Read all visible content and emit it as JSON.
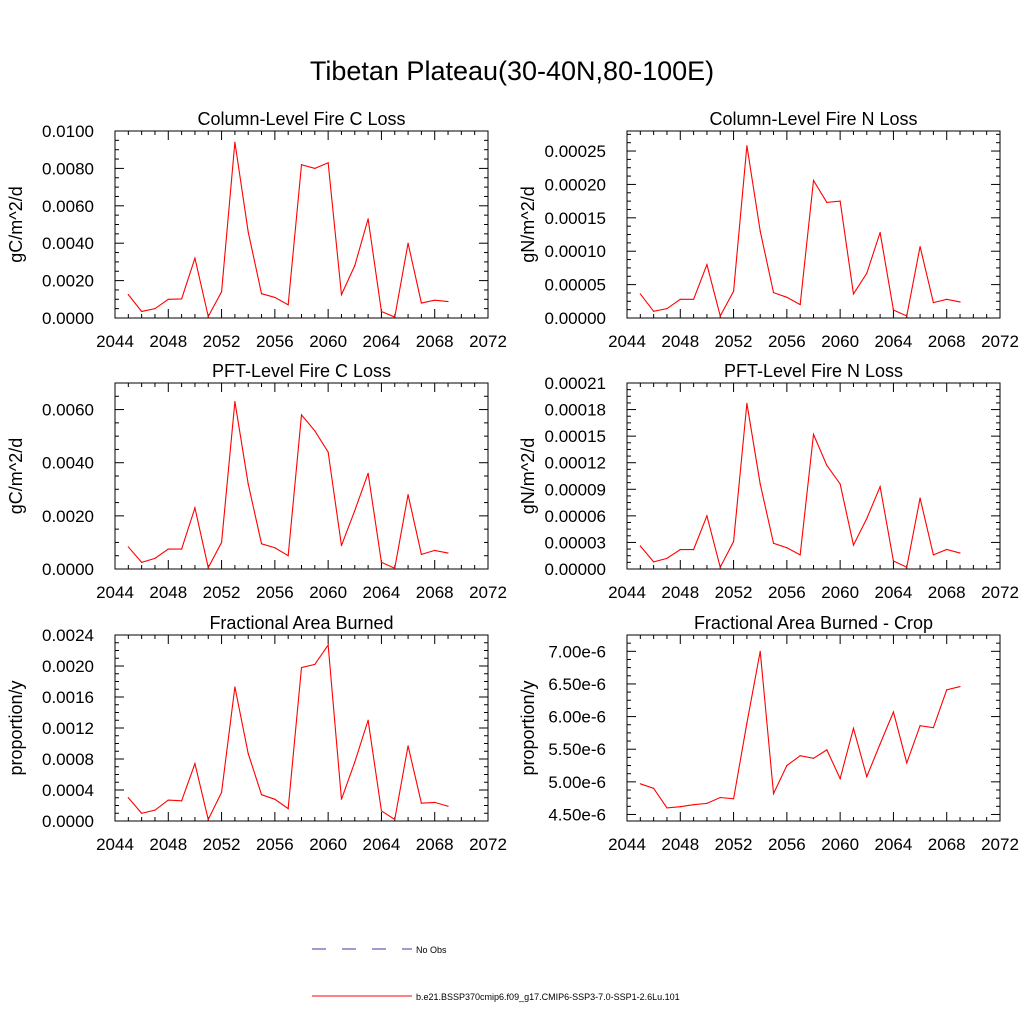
{
  "page_title": "Tibetan Plateau(30-40N,80-100E)",
  "legend": {
    "entries": [
      {
        "label": "No Obs",
        "style": "dashed",
        "color": "#3a3aa0"
      },
      {
        "label": "b.e21.BSSP370cmip6.f09_g17.CMIP6-SSP3-7.0-SSP1-2.6Lu.101",
        "style": "solid",
        "color": "#ff0000"
      }
    ]
  },
  "chart_data": [
    {
      "type": "line",
      "title": "Column-Level Fire C Loss",
      "ylabel": "gC/m^2/d",
      "xlim": [
        2044,
        2072
      ],
      "xticks": [
        2044,
        2048,
        2052,
        2056,
        2060,
        2064,
        2068,
        2072
      ],
      "ylim": [
        0,
        0.01
      ],
      "yticks": [
        0,
        0.002,
        0.004,
        0.006,
        0.008,
        0.01
      ],
      "ytick_labels": [
        "0.0000",
        "0.0020",
        "0.0040",
        "0.0060",
        "0.0080",
        "0.0100"
      ],
      "x": [
        2045,
        2046,
        2047,
        2048,
        2049,
        2050,
        2051,
        2052,
        2053,
        2054,
        2055,
        2056,
        2057,
        2058,
        2059,
        2060,
        2061,
        2062,
        2063,
        2064,
        2065,
        2066,
        2067,
        2068,
        2069
      ],
      "series": [
        {
          "color": "#ff0000",
          "values": [
            0.00125,
            0.00035,
            0.0005,
            0.001,
            0.00102,
            0.0032,
            8e-05,
            0.0014,
            0.0094,
            0.0046,
            0.0013,
            0.0011,
            0.0007,
            0.0082,
            0.008,
            0.0083,
            0.00125,
            0.0028,
            0.0053,
            0.00035,
            5e-05,
            0.004,
            0.0008,
            0.00095,
            0.00088
          ]
        }
      ]
    },
    {
      "type": "line",
      "title": "Column-Level Fire N Loss",
      "ylabel": "gN/m^2/d",
      "xlim": [
        2044,
        2072
      ],
      "xticks": [
        2044,
        2048,
        2052,
        2056,
        2060,
        2064,
        2068,
        2072
      ],
      "ylim": [
        0,
        0.00028
      ],
      "yticks": [
        0,
        5e-05,
        0.0001,
        0.00015,
        0.0002,
        0.00025
      ],
      "ytick_labels": [
        "0.00000",
        "0.00005",
        "0.00010",
        "0.00015",
        "0.00020",
        "0.00025"
      ],
      "x": [
        2045,
        2046,
        2047,
        2048,
        2049,
        2050,
        2051,
        2052,
        2053,
        2054,
        2055,
        2056,
        2057,
        2058,
        2059,
        2060,
        2061,
        2062,
        2063,
        2064,
        2065,
        2066,
        2067,
        2068,
        2069
      ],
      "series": [
        {
          "color": "#ff0000",
          "values": [
            3.6e-05,
            1e-05,
            1.4e-05,
            2.8e-05,
            2.8e-05,
            8e-05,
            3e-06,
            4e-05,
            0.000258,
            0.00013,
            3.8e-05,
            3.1e-05,
            2e-05,
            0.000206,
            0.000173,
            0.000175,
            3.6e-05,
            6.7e-05,
            0.000128,
            1.2e-05,
            3e-06,
            0.000107,
            2.3e-05,
            2.8e-05,
            2.4e-05
          ]
        }
      ]
    },
    {
      "type": "line",
      "title": "PFT-Level Fire C Loss",
      "ylabel": "gC/m^2/d",
      "xlim": [
        2044,
        2072
      ],
      "xticks": [
        2044,
        2048,
        2052,
        2056,
        2060,
        2064,
        2068,
        2072
      ],
      "ylim": [
        0,
        0.007
      ],
      "yticks": [
        0,
        0.002,
        0.004,
        0.006
      ],
      "ytick_labels": [
        "0.0000",
        "0.0020",
        "0.0040",
        "0.0060"
      ],
      "x": [
        2045,
        2046,
        2047,
        2048,
        2049,
        2050,
        2051,
        2052,
        2053,
        2054,
        2055,
        2056,
        2057,
        2058,
        2059,
        2060,
        2061,
        2062,
        2063,
        2064,
        2065,
        2066,
        2067,
        2068,
        2069
      ],
      "series": [
        {
          "color": "#ff0000",
          "values": [
            0.00083,
            0.00025,
            0.0004,
            0.00075,
            0.00075,
            0.0023,
            5e-05,
            0.001,
            0.0063,
            0.0032,
            0.00095,
            0.0008,
            0.0005,
            0.0058,
            0.0052,
            0.0044,
            0.00088,
            0.0022,
            0.0036,
            0.00025,
            3e-05,
            0.0028,
            0.00055,
            0.0007,
            0.0006
          ]
        }
      ]
    },
    {
      "type": "line",
      "title": "PFT-Level Fire N Loss",
      "ylabel": "gN/m^2/d",
      "xlim": [
        2044,
        2072
      ],
      "xticks": [
        2044,
        2048,
        2052,
        2056,
        2060,
        2064,
        2068,
        2072
      ],
      "ylim": [
        0,
        0.00021
      ],
      "yticks": [
        0,
        3e-05,
        6e-05,
        9e-05,
        0.00012,
        0.00015,
        0.00018,
        0.00021
      ],
      "ytick_labels": [
        "0.00000",
        "0.00003",
        "0.00006",
        "0.00009",
        "0.00012",
        "0.00015",
        "0.00018",
        "0.00021"
      ],
      "x": [
        2045,
        2046,
        2047,
        2048,
        2049,
        2050,
        2051,
        2052,
        2053,
        2054,
        2055,
        2056,
        2057,
        2058,
        2059,
        2060,
        2061,
        2062,
        2063,
        2064,
        2065,
        2066,
        2067,
        2068,
        2069
      ],
      "series": [
        {
          "color": "#ff0000",
          "values": [
            2.6e-05,
            8e-06,
            1.2e-05,
            2.2e-05,
            2.2e-05,
            6e-05,
            2e-06,
            3.1e-05,
            0.000187,
            9.6e-05,
            2.9e-05,
            2.4e-05,
            1.6e-05,
            0.000152,
            0.000117,
            9.6e-05,
            2.7e-05,
            5.7e-05,
            9.3e-05,
            9e-06,
            2e-06,
            8e-05,
            1.6e-05,
            2.2e-05,
            1.8e-05
          ]
        }
      ]
    },
    {
      "type": "line",
      "title": "Fractional Area Burned",
      "ylabel": "proportion/y",
      "xlim": [
        2044,
        2072
      ],
      "xticks": [
        2044,
        2048,
        2052,
        2056,
        2060,
        2064,
        2068,
        2072
      ],
      "ylim": [
        0,
        0.0024
      ],
      "yticks": [
        0,
        0.0004,
        0.0008,
        0.0012,
        0.0016,
        0.002,
        0.0024
      ],
      "ytick_labels": [
        "0.0000",
        "0.0004",
        "0.0008",
        "0.0012",
        "0.0016",
        "0.0020",
        "0.0024"
      ],
      "x": [
        2045,
        2046,
        2047,
        2048,
        2049,
        2050,
        2051,
        2052,
        2053,
        2054,
        2055,
        2056,
        2057,
        2058,
        2059,
        2060,
        2061,
        2062,
        2063,
        2064,
        2065,
        2066,
        2067,
        2068,
        2069
      ],
      "series": [
        {
          "color": "#ff0000",
          "values": [
            0.0003,
            0.0001,
            0.00014,
            0.00027,
            0.00026,
            0.00074,
            2e-05,
            0.00037,
            0.00173,
            0.00087,
            0.00034,
            0.00028,
            0.00016,
            0.00198,
            0.00202,
            0.00227,
            0.00028,
            0.00076,
            0.0013,
            0.00013,
            2e-05,
            0.00097,
            0.00023,
            0.00024,
            0.00019
          ]
        }
      ]
    },
    {
      "type": "line",
      "title": "Fractional Area Burned - Crop",
      "ylabel": "proportion/y",
      "xlim": [
        2044,
        2072
      ],
      "xticks": [
        2044,
        2048,
        2052,
        2056,
        2060,
        2064,
        2068,
        2072
      ],
      "ylim": [
        4.4e-06,
        7.25e-06
      ],
      "yticks": [
        4.5e-06,
        5e-06,
        5.5e-06,
        6e-06,
        6.5e-06,
        7e-06
      ],
      "ytick_labels": [
        "4.50e-6",
        "5.00e-6",
        "5.50e-6",
        "6.00e-6",
        "6.50e-6",
        "7.00e-6"
      ],
      "x": [
        2045,
        2046,
        2047,
        2048,
        2049,
        2050,
        2051,
        2052,
        2053,
        2054,
        2055,
        2056,
        2057,
        2058,
        2059,
        2060,
        2061,
        2062,
        2063,
        2064,
        2065,
        2066,
        2067,
        2068,
        2069
      ],
      "series": [
        {
          "color": "#ff0000",
          "values": [
            4.97e-06,
            4.9e-06,
            4.6e-06,
            4.62e-06,
            4.65e-06,
            4.67e-06,
            4.76e-06,
            4.74e-06,
            5.9e-06,
            7e-06,
            4.82e-06,
            5.25e-06,
            5.4e-06,
            5.36e-06,
            5.49e-06,
            5.05e-06,
            5.82e-06,
            5.08e-06,
            5.58e-06,
            6.07e-06,
            5.29e-06,
            5.86e-06,
            5.83e-06,
            6.41e-06,
            6.46e-06
          ]
        }
      ]
    }
  ]
}
